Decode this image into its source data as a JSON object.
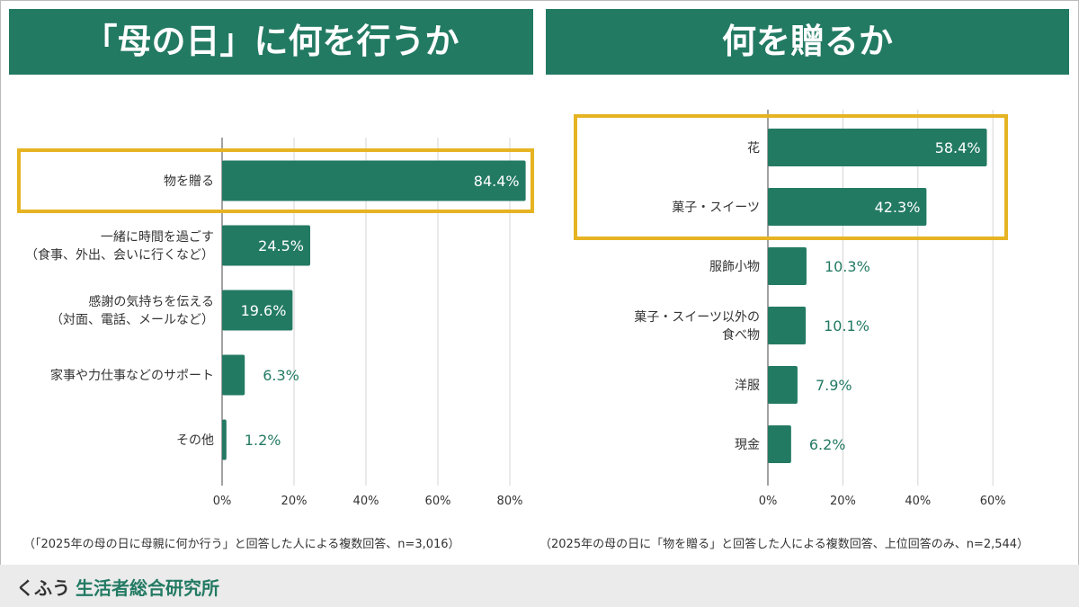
{
  "header_left": "「母の日」に何を行うか",
  "header_right": "何を贈るか",
  "accent_color": "#237a63",
  "highlight_color": "#e6b422",
  "chart_data": [
    {
      "type": "bar",
      "orientation": "horizontal",
      "categories": [
        [
          "物を贈る"
        ],
        [
          "一緒に時間を過ごす",
          "（食事、外出、会いに行くなど）"
        ],
        [
          "感謝の気持ちを伝える",
          "（対面、電話、メールなど）"
        ],
        [
          "家事や力仕事などのサポート"
        ],
        [
          "その他"
        ]
      ],
      "values": [
        84.4,
        24.5,
        19.6,
        6.3,
        1.2
      ],
      "value_labels": [
        "84.4%",
        "24.5%",
        "19.6%",
        "6.3%",
        "1.2%"
      ],
      "xlim": [
        0,
        80
      ],
      "ticks": [
        "0%",
        "20%",
        "40%",
        "60%",
        "80%"
      ],
      "grid": true,
      "highlighted": [
        0
      ]
    },
    {
      "type": "bar",
      "orientation": "horizontal",
      "categories": [
        [
          "花"
        ],
        [
          "菓子・スイーツ"
        ],
        [
          "服飾小物"
        ],
        [
          "菓子・スイーツ以外の",
          "食べ物"
        ],
        [
          "洋服"
        ],
        [
          "現金"
        ]
      ],
      "values": [
        58.4,
        42.3,
        10.3,
        10.1,
        7.9,
        6.2
      ],
      "value_labels": [
        "58.4%",
        "42.3%",
        "10.3%",
        "10.1%",
        "7.9%",
        "6.2%"
      ],
      "xlim": [
        0,
        60
      ],
      "ticks": [
        "0%",
        "20%",
        "40%",
        "60%"
      ],
      "grid": true,
      "highlighted": [
        0,
        1
      ]
    }
  ],
  "note_left": "（「2025年の母の日に母親に何か行う」と回答した人による複数回答、n=3,016）",
  "note_right": "（2025年の母の日に「物を贈る」と回答した人による複数回答、上位回答のみ、n=2,544）",
  "brand_a": "くふう",
  "brand_b": "生活者総合研究所"
}
